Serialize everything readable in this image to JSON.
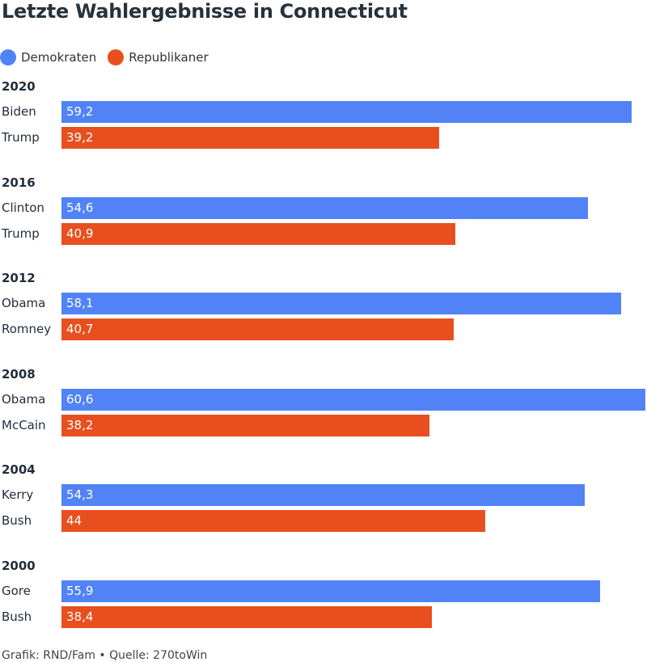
{
  "chart_data": {
    "type": "bar",
    "orientation": "horizontal",
    "title": "Letzte Wahlergebnisse in Connecticut",
    "legend": [
      {
        "label": "Demokraten",
        "color": "#5183f6"
      },
      {
        "label": "Republikaner",
        "color": "#e84f1f"
      }
    ],
    "groups": [
      {
        "year": "2020",
        "rows": [
          {
            "candidate": "Biden",
            "party": "dem",
            "value": 59.2,
            "label": "59,2"
          },
          {
            "candidate": "Trump",
            "party": "rep",
            "value": 39.2,
            "label": "39,2"
          }
        ]
      },
      {
        "year": "2016",
        "rows": [
          {
            "candidate": "Clinton",
            "party": "dem",
            "value": 54.6,
            "label": "54,6"
          },
          {
            "candidate": "Trump",
            "party": "rep",
            "value": 40.9,
            "label": "40,9"
          }
        ]
      },
      {
        "year": "2012",
        "rows": [
          {
            "candidate": "Obama",
            "party": "dem",
            "value": 58.1,
            "label": "58,1"
          },
          {
            "candidate": "Romney",
            "party": "rep",
            "value": 40.7,
            "label": "40,7"
          }
        ]
      },
      {
        "year": "2008",
        "rows": [
          {
            "candidate": "Obama",
            "party": "dem",
            "value": 60.6,
            "label": "60,6"
          },
          {
            "candidate": "McCain",
            "party": "rep",
            "value": 38.2,
            "label": "38,2"
          }
        ]
      },
      {
        "year": "2004",
        "rows": [
          {
            "candidate": "Kerry",
            "party": "dem",
            "value": 54.3,
            "label": "54,3"
          },
          {
            "candidate": "Bush",
            "party": "rep",
            "value": 44,
            "label": "44"
          }
        ]
      },
      {
        "year": "2000",
        "rows": [
          {
            "candidate": "Gore",
            "party": "dem",
            "value": 55.9,
            "label": "55,9"
          },
          {
            "candidate": "Bush",
            "party": "rep",
            "value": 38.4,
            "label": "38,4"
          }
        ]
      }
    ],
    "xlim": [
      0,
      60.6
    ],
    "grid": false
  },
  "colors": {
    "dem": "#5183f6",
    "rep": "#e84f1f"
  },
  "footer": "Grafik: RND/Fam • Quelle: 270toWin"
}
